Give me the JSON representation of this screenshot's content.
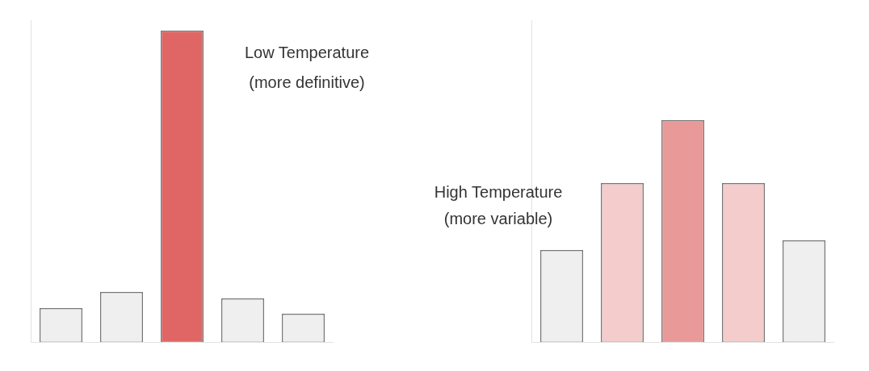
{
  "chart_data": [
    {
      "type": "bar",
      "categories": [
        null,
        null,
        null,
        null,
        null
      ],
      "values": [
        43,
        63,
        387,
        55,
        36
      ],
      "colors": [
        "#efefef",
        "#efefef",
        "#e06666",
        "#efefef",
        "#efefef"
      ],
      "ylim": [
        0,
        400
      ],
      "grid": false,
      "tick_labels": false,
      "annotations": [
        "Low Temperature",
        "(more definitive)"
      ]
    },
    {
      "type": "bar",
      "categories": [
        null,
        null,
        null,
        null,
        null
      ],
      "values": [
        115,
        198,
        276,
        198,
        127
      ],
      "colors": [
        "#efefef",
        "#f4cccc",
        "#ea9999",
        "#f4cccc",
        "#efefef"
      ],
      "ylim": [
        0,
        400
      ],
      "grid": false,
      "tick_labels": false,
      "annotations": [
        "High Temperature",
        "(more variable)"
      ]
    }
  ]
}
